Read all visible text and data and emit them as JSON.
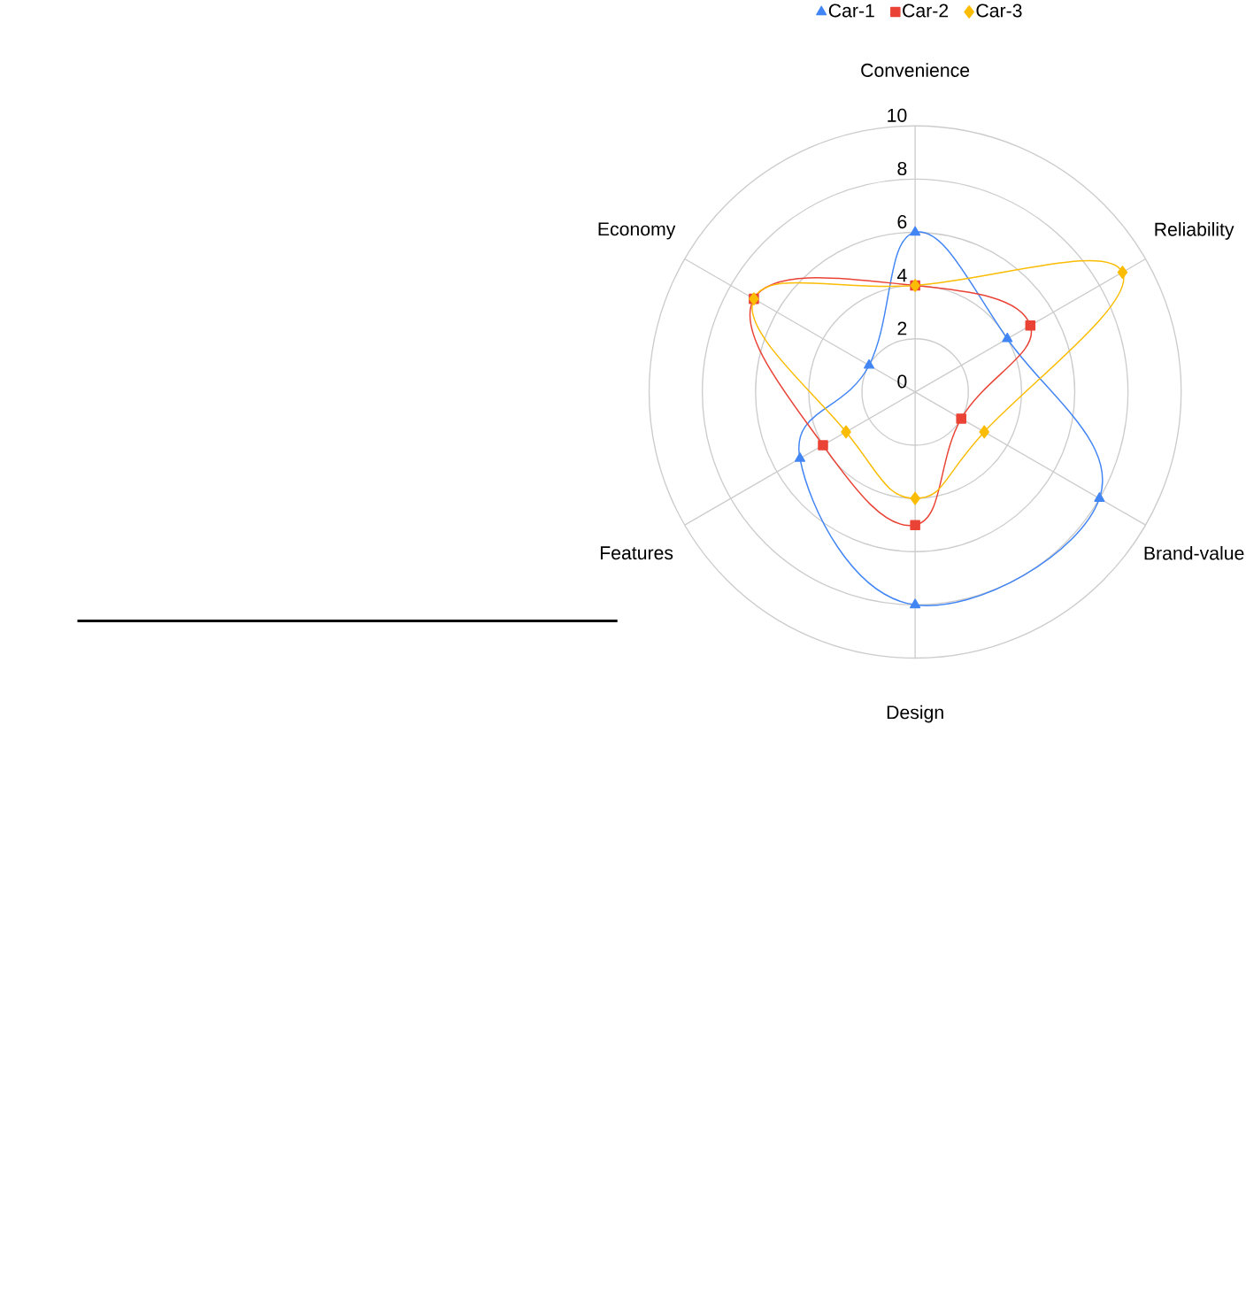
{
  "chart_data": {
    "type": "radar",
    "categories": [
      "Convenience",
      "Reliability",
      "Brand-value",
      "Design",
      "Features",
      "Economy"
    ],
    "series": [
      {
        "name": "Car-1",
        "color": "#4285f4",
        "marker": "triangle",
        "values": [
          6,
          4,
          8,
          8,
          5,
          2
        ]
      },
      {
        "name": "Car-2",
        "color": "#ea4335",
        "marker": "square",
        "values": [
          4,
          5,
          2,
          5,
          4,
          7
        ]
      },
      {
        "name": "Car-3",
        "color": "#fbbc04",
        "marker": "diamond",
        "values": [
          4,
          9,
          3,
          4,
          3,
          7
        ]
      }
    ],
    "ylim": [
      0,
      10
    ],
    "yticks": [
      0,
      2,
      4,
      6,
      8,
      10
    ],
    "grid": true,
    "legend": "top"
  }
}
